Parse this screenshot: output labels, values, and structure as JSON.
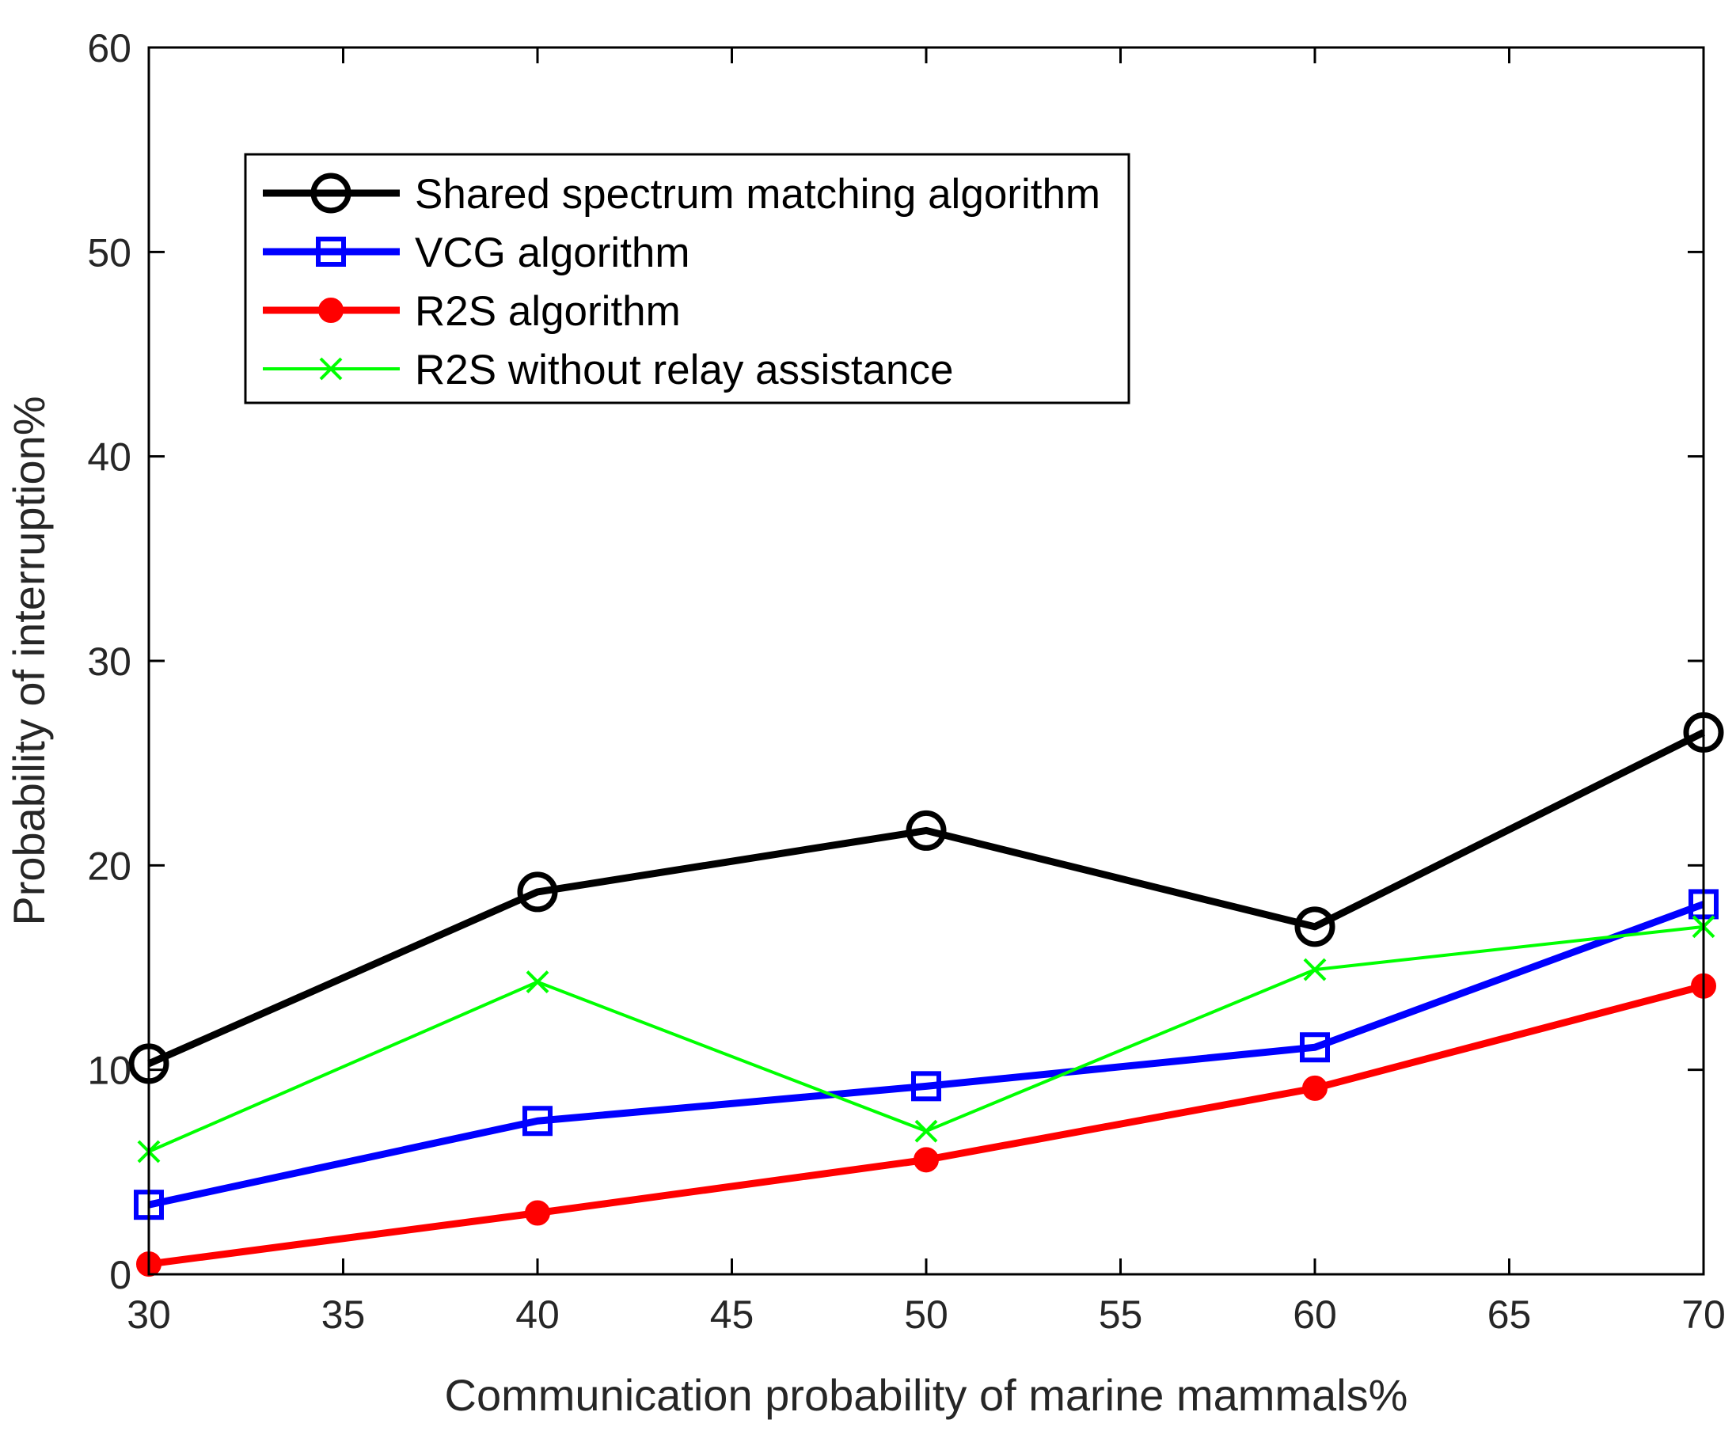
{
  "chart_data": {
    "type": "line",
    "title": "",
    "xlabel": "Communication probability of marine mammals%",
    "ylabel": "Probability of interruption%",
    "xlim": [
      30,
      70
    ],
    "ylim": [
      0,
      60
    ],
    "xticks": [
      30,
      35,
      40,
      45,
      50,
      55,
      60,
      65,
      70
    ],
    "yticks": [
      0,
      10,
      20,
      30,
      40,
      50,
      60
    ],
    "grid": false,
    "legend_position": "top-left",
    "x": [
      30,
      40,
      50,
      60,
      70
    ],
    "series": [
      {
        "name": "Shared spectrum matching algorithm",
        "values": [
          10.3,
          18.7,
          21.7,
          17.0,
          26.5
        ],
        "color": "#000000",
        "marker": "circle-open",
        "line_style": "thick"
      },
      {
        "name": "VCG algorithm",
        "values": [
          3.4,
          7.5,
          9.2,
          11.1,
          18.1
        ],
        "color": "#0000ff",
        "marker": "square-open",
        "line_style": "thick"
      },
      {
        "name": "R2S algorithm",
        "values": [
          0.5,
          3.0,
          5.6,
          9.1,
          14.1
        ],
        "color": "#ff0000",
        "marker": "circle-filled",
        "line_style": "thick"
      },
      {
        "name": "R2S without relay assistance",
        "values": [
          6.0,
          14.3,
          7.0,
          14.9,
          17.0
        ],
        "color": "#00ff00",
        "marker": "x",
        "line_style": "thin"
      }
    ]
  }
}
